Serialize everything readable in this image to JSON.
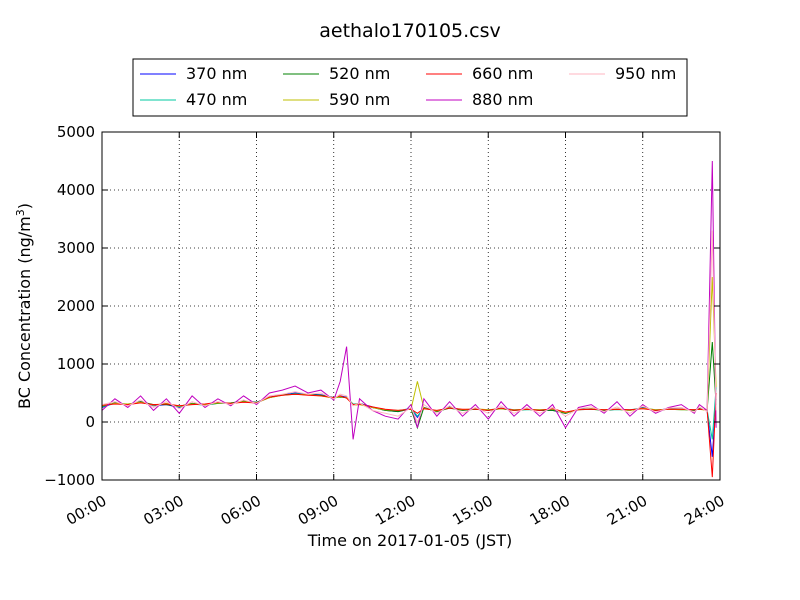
{
  "chart_data": {
    "type": "line",
    "title": "aethalo170105.csv",
    "xlabel": "Time on 2017-01-05 (JST)",
    "ylabel_main": "BC Concentration (ng/m",
    "ylabel_sup": "3",
    "ylabel_tail": ")",
    "xlim": [
      0,
      24
    ],
    "ylim": [
      -1000,
      5000
    ],
    "xticks": [
      0,
      3,
      6,
      9,
      12,
      15,
      18,
      21,
      24
    ],
    "xtick_labels": [
      "00:00",
      "03:00",
      "06:00",
      "09:00",
      "12:00",
      "15:00",
      "18:00",
      "21:00",
      "24:00"
    ],
    "yticks": [
      -1000,
      0,
      1000,
      2000,
      3000,
      4000,
      5000
    ],
    "ytick_labels": [
      "−1000",
      "0",
      "1000",
      "2000",
      "3000",
      "4000",
      "5000"
    ],
    "grid": true,
    "legend_position": "top-center",
    "x": [
      0.0,
      0.5,
      1.0,
      1.5,
      2.0,
      2.5,
      3.0,
      3.5,
      4.0,
      4.5,
      5.0,
      5.5,
      6.0,
      6.5,
      7.0,
      7.5,
      8.0,
      8.5,
      9.0,
      9.25,
      9.5,
      9.75,
      10.0,
      10.5,
      11.0,
      11.5,
      12.0,
      12.25,
      12.5,
      13.0,
      13.5,
      14.0,
      14.5,
      15.0,
      15.5,
      16.0,
      16.5,
      17.0,
      17.5,
      18.0,
      18.5,
      19.0,
      19.5,
      20.0,
      20.5,
      21.0,
      21.5,
      22.0,
      22.5,
      23.0,
      23.2,
      23.5,
      23.7,
      23.85
    ],
    "series": [
      {
        "name": "370 nm",
        "color": "#0000ff",
        "values": [
          250,
          330,
          300,
          350,
          280,
          300,
          250,
          320,
          300,
          330,
          320,
          360,
          340,
          430,
          470,
          500,
          480,
          470,
          420,
          450,
          430,
          300,
          320,
          260,
          200,
          180,
          230,
          80,
          250,
          180,
          260,
          200,
          230,
          200,
          240,
          210,
          220,
          200,
          200,
          150,
          220,
          230,
          200,
          220,
          200,
          250,
          200,
          230,
          220,
          200,
          230,
          200,
          -600,
          400
        ]
      },
      {
        "name": "470 nm",
        "color": "#00c8a0",
        "values": [
          260,
          320,
          310,
          340,
          290,
          310,
          260,
          310,
          290,
          320,
          330,
          350,
          330,
          420,
          460,
          490,
          470,
          460,
          410,
          440,
          420,
          310,
          310,
          250,
          210,
          190,
          240,
          100,
          240,
          190,
          250,
          210,
          220,
          210,
          230,
          200,
          210,
          210,
          210,
          160,
          210,
          220,
          210,
          210,
          210,
          240,
          210,
          220,
          210,
          210,
          220,
          210,
          -300,
          600
        ]
      },
      {
        "name": "520 nm",
        "color": "#008000",
        "values": [
          270,
          330,
          300,
          350,
          300,
          300,
          270,
          320,
          300,
          320,
          330,
          360,
          340,
          420,
          470,
          480,
          470,
          460,
          420,
          430,
          420,
          300,
          320,
          250,
          200,
          180,
          230,
          -100,
          250,
          180,
          240,
          200,
          220,
          200,
          230,
          200,
          220,
          200,
          200,
          150,
          220,
          220,
          200,
          220,
          200,
          240,
          200,
          220,
          220,
          200,
          230,
          200,
          1380,
          300
        ]
      },
      {
        "name": "590 nm",
        "color": "#bfbf00",
        "values": [
          280,
          320,
          310,
          340,
          290,
          320,
          270,
          310,
          300,
          330,
          320,
          350,
          330,
          420,
          460,
          480,
          470,
          450,
          410,
          440,
          420,
          290,
          300,
          250,
          210,
          200,
          220,
          700,
          240,
          190,
          250,
          210,
          230,
          210,
          230,
          210,
          220,
          210,
          220,
          160,
          210,
          230,
          210,
          220,
          200,
          240,
          210,
          220,
          210,
          210,
          220,
          200,
          2500,
          600
        ]
      },
      {
        "name": "660 nm",
        "color": "#ff0000",
        "values": [
          290,
          310,
          300,
          330,
          300,
          310,
          280,
          300,
          310,
          340,
          320,
          340,
          330,
          430,
          460,
          480,
          460,
          450,
          420,
          450,
          410,
          300,
          310,
          260,
          220,
          200,
          220,
          150,
          230,
          200,
          240,
          220,
          220,
          200,
          240,
          200,
          220,
          200,
          230,
          170,
          210,
          220,
          210,
          220,
          210,
          230,
          200,
          220,
          220,
          210,
          220,
          210,
          -950,
          500
        ]
      },
      {
        "name": "880 nm",
        "color": "#c000c0",
        "values": [
          200,
          400,
          250,
          450,
          200,
          400,
          150,
          450,
          250,
          400,
          280,
          450,
          300,
          500,
          550,
          620,
          500,
          550,
          380,
          700,
          1300,
          -300,
          400,
          200,
          100,
          50,
          300,
          -100,
          400,
          100,
          350,
          100,
          300,
          50,
          350,
          100,
          300,
          100,
          300,
          -100,
          250,
          300,
          150,
          350,
          100,
          300,
          150,
          250,
          300,
          150,
          300,
          200,
          4500,
          -100
        ]
      },
      {
        "name": "950 nm",
        "color": "#ffb6c1",
        "values": [
          300,
          350,
          280,
          380,
          250,
          350,
          230,
          350,
          280,
          350,
          300,
          380,
          320,
          450,
          480,
          520,
          480,
          500,
          400,
          480,
          450,
          280,
          330,
          200,
          150,
          100,
          250,
          0,
          300,
          150,
          280,
          150,
          250,
          150,
          280,
          150,
          250,
          150,
          250,
          100,
          230,
          260,
          180,
          260,
          150,
          280,
          170,
          240,
          250,
          170,
          260,
          180,
          3300,
          200
        ]
      }
    ]
  }
}
